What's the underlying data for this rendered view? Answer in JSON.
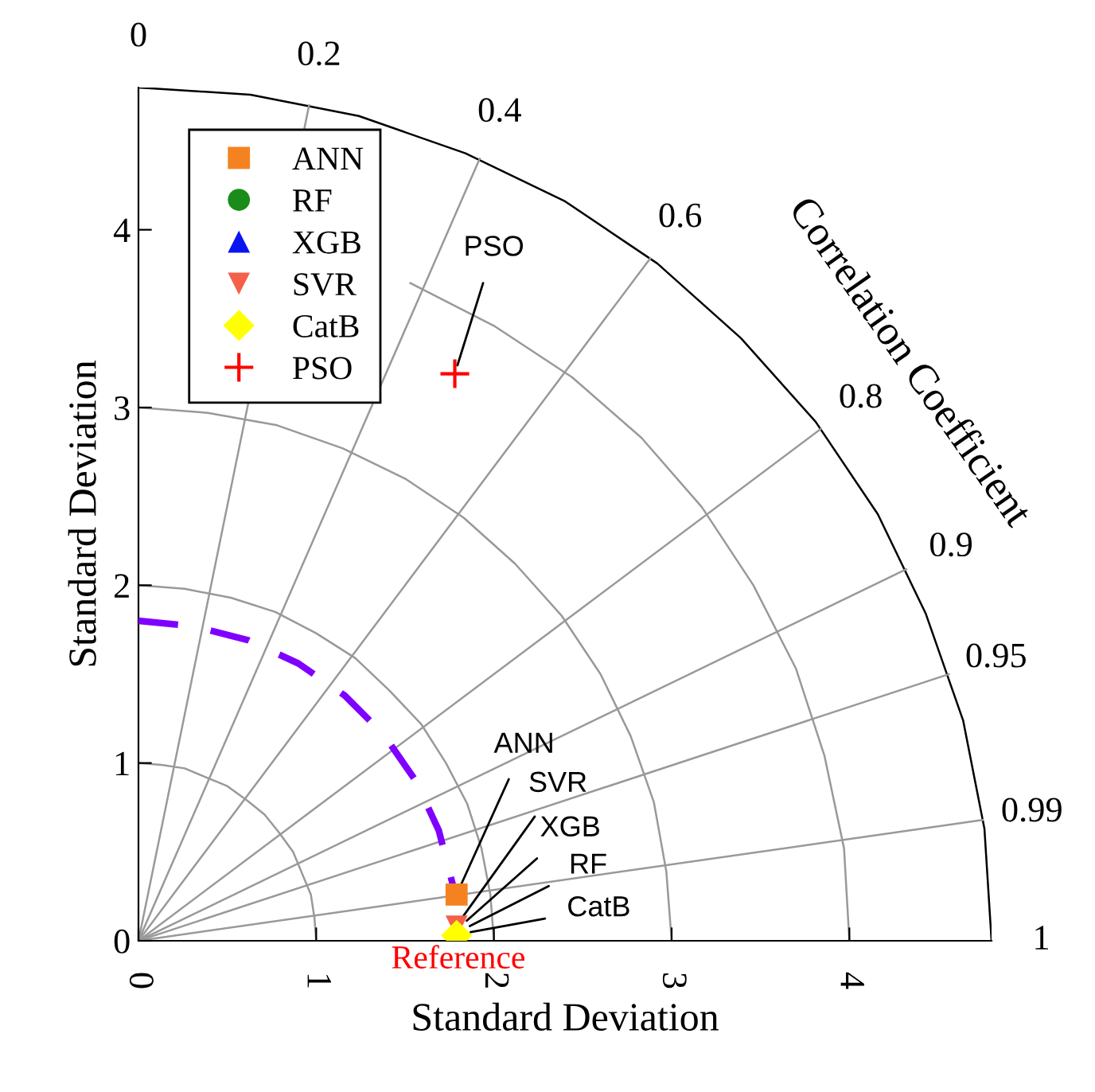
{
  "chart_data": {
    "type": "scatter",
    "xlabel": "Standard Deviation",
    "ylabel": "Standard Deviation",
    "xlim": [
      0,
      4.8
    ],
    "ylim": [
      0,
      4.8
    ],
    "xticks": [
      0,
      1,
      2,
      3,
      4
    ],
    "yticks": [
      0,
      1,
      2,
      3,
      4
    ],
    "legend": "top left",
    "series": [
      {
        "name": "ANN",
        "color": "#f58220",
        "marker": "square",
        "x": [
          1.79
        ],
        "values": [
          0.26
        ]
      },
      {
        "name": "RF",
        "color": "#1a8c1a",
        "marker": "circle",
        "x": [
          null
        ],
        "values": [
          null
        ]
      },
      {
        "name": "XGB",
        "color": "#0a14f0",
        "marker": "triangle",
        "x": [
          null
        ],
        "values": [
          null
        ]
      },
      {
        "name": "SVR",
        "color": "#f5604a",
        "marker": "triangle_down",
        "x": [
          1.79
        ],
        "values": [
          0.08
        ]
      },
      {
        "name": "CatB",
        "color": "#ffff00",
        "marker": "diamond",
        "x": [
          1.79
        ],
        "values": [
          0.03
        ]
      },
      {
        "name": "PSO",
        "color": "#ff0000",
        "marker": "cross",
        "x": [
          1.78
        ],
        "values": [
          3.19
        ]
      },
      {
        "type": "line",
        "color": "#999999",
        "marker": "none",
        "x": [
          1,
          0.99,
          0.97,
          0.92,
          0.87,
          0.79,
          0.71,
          0.61,
          0.5,
          0.38,
          0.26,
          0.13,
          0
        ],
        "values": [
          0,
          0.13,
          0.26,
          0.38,
          0.5,
          0.61,
          0.71,
          0.79,
          0.87,
          0.92,
          0.97,
          0.99,
          1
        ]
      },
      {
        "type": "line",
        "color": "#999999",
        "marker": "none",
        "x": [
          2,
          1.98,
          1.93,
          1.85,
          1.73,
          1.59,
          1.41,
          1.22,
          1,
          0.77,
          0.52,
          0.26,
          0
        ],
        "values": [
          0,
          0.26,
          0.52,
          0.77,
          1,
          1.22,
          1.41,
          1.59,
          1.73,
          1.85,
          1.93,
          1.98,
          2
        ]
      },
      {
        "type": "line",
        "color": "#999999",
        "marker": "none",
        "x": [
          3,
          2.97,
          2.9,
          2.77,
          2.6,
          2.38,
          2.12,
          1.83,
          1.5,
          1.15,
          0.78,
          0.39,
          0
        ],
        "values": [
          0,
          0.39,
          0.78,
          1.15,
          1.5,
          1.83,
          2.12,
          2.38,
          2.6,
          2.77,
          2.9,
          2.97,
          3
        ]
      },
      {
        "type": "line",
        "color": "#999999",
        "marker": "none",
        "x": [
          4,
          3.97,
          3.86,
          3.7,
          3.46,
          3.17,
          2.83,
          2.44,
          2,
          1.53
        ],
        "values": [
          0,
          0.52,
          1.04,
          1.53,
          2,
          2.44,
          2.83,
          3.17,
          3.46,
          3.7
        ]
      },
      {
        "type": "line",
        "color": "#000000",
        "marker": "none",
        "x": [
          4.8,
          4.76,
          4.64,
          4.43,
          4.16,
          3.81,
          3.39,
          2.92,
          2.4,
          1.84,
          1.24,
          0.63,
          0
        ],
        "values": [
          0,
          0.63,
          1.24,
          1.84,
          2.4,
          2.92,
          3.39,
          3.81,
          4.16,
          4.43,
          4.64,
          4.76,
          4.8
        ]
      },
      {
        "type": "line",
        "color": "#999999",
        "marker": "none",
        "x": [
          0,
          0.96
        ],
        "values": [
          0,
          4.7
        ]
      },
      {
        "type": "line",
        "color": "#999999",
        "marker": "none",
        "x": [
          0,
          1.92
        ],
        "values": [
          0,
          4.4
        ]
      },
      {
        "type": "line",
        "color": "#999999",
        "marker": "none",
        "x": [
          0,
          2.88
        ],
        "values": [
          0,
          3.84
        ]
      },
      {
        "type": "line",
        "color": "#999999",
        "marker": "none",
        "x": [
          0,
          3.84
        ],
        "values": [
          0,
          2.88
        ]
      },
      {
        "type": "line",
        "color": "#999999",
        "marker": "none",
        "x": [
          0,
          4.32
        ],
        "values": [
          0,
          2.09
        ]
      },
      {
        "type": "line",
        "color": "#999999",
        "marker": "none",
        "x": [
          0,
          4.56
        ],
        "values": [
          0,
          1.5
        ]
      },
      {
        "type": "line",
        "color": "#999999",
        "marker": "none",
        "x": [
          0,
          4.75
        ],
        "values": [
          0,
          0.68
        ]
      },
      {
        "type": "line",
        "color": "#7f00ff",
        "line_style": "dashed",
        "marker": "none",
        "x": [
          0,
          0.31,
          0.62,
          0.9,
          1.16,
          1.38,
          1.56,
          1.69,
          1.77
        ],
        "values": [
          1.8,
          1.77,
          1.69,
          1.56,
          1.38,
          1.16,
          0.9,
          0.62,
          0.31
        ]
      }
    ],
    "annotations": [
      "0",
      "0.2",
      "0.4",
      "0.6",
      "0.8",
      "0.9",
      "0.95",
      "0.99",
      "1",
      "Correlation Coefficient",
      {
        "text": "Reference",
        "x": 1.8,
        "y": 0
      },
      {
        "text": "ANN",
        "x": 1.79,
        "y": 0.26
      },
      {
        "text": "SVR",
        "x": 1.8,
        "y": 0.1
      },
      {
        "text": "XGB",
        "x": 1.81,
        "y": 0.08
      },
      {
        "text": "RF",
        "x": 1.82,
        "y": 0.06
      },
      {
        "text": "CatB",
        "x": 1.82,
        "y": 0.04
      },
      {
        "text": "PSO",
        "x": 1.78,
        "y": 3.19
      }
    ]
  }
}
